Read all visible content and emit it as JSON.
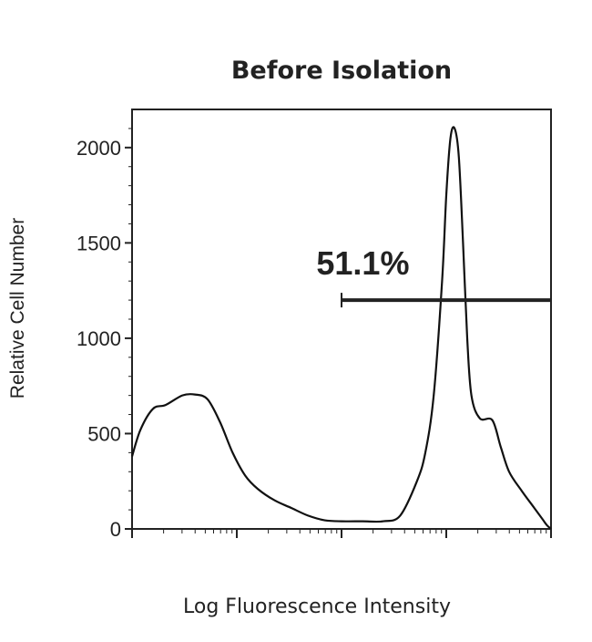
{
  "chart_data": {
    "type": "line",
    "title": "Before Isolation",
    "xlabel": "Log Fluorescence Intensity",
    "ylabel": "Relative Cell Number",
    "ylim": [
      0,
      2200
    ],
    "xlim": [
      0,
      1
    ],
    "x_scale": "log",
    "y_ticks": [
      0,
      500,
      1000,
      1500,
      2000
    ],
    "y_tick_labels": [
      "0",
      "500",
      "1000",
      "1500",
      "2000"
    ],
    "series": [
      {
        "x": [
          0,
          0.02,
          0.05,
          0.08,
          0.12,
          0.15,
          0.18,
          0.21,
          0.24,
          0.27,
          0.3,
          0.34,
          0.38,
          0.42,
          0.46,
          0.5,
          0.55,
          0.6,
          0.64,
          0.68,
          0.7,
          0.72,
          0.74,
          0.75,
          0.76,
          0.77,
          0.78,
          0.79,
          0.8,
          0.81,
          0.83,
          0.86,
          0.88,
          0.9,
          0.93,
          0.96,
          0.98,
          0.99,
          1.0
        ],
        "y": [
          380,
          520,
          630,
          650,
          700,
          705,
          680,
          560,
          400,
          280,
          210,
          150,
          110,
          70,
          45,
          40,
          40,
          40,
          70,
          250,
          400,
          700,
          1300,
          1750,
          2050,
          2100,
          1950,
          1500,
          1000,
          700,
          580,
          570,
          430,
          300,
          200,
          110,
          50,
          20,
          0
        ]
      }
    ],
    "annotations": [
      {
        "text": "51.1%",
        "type": "gate",
        "x_start": 0.5,
        "x_end": 1.0,
        "y": 1200
      }
    ],
    "grid": false
  }
}
